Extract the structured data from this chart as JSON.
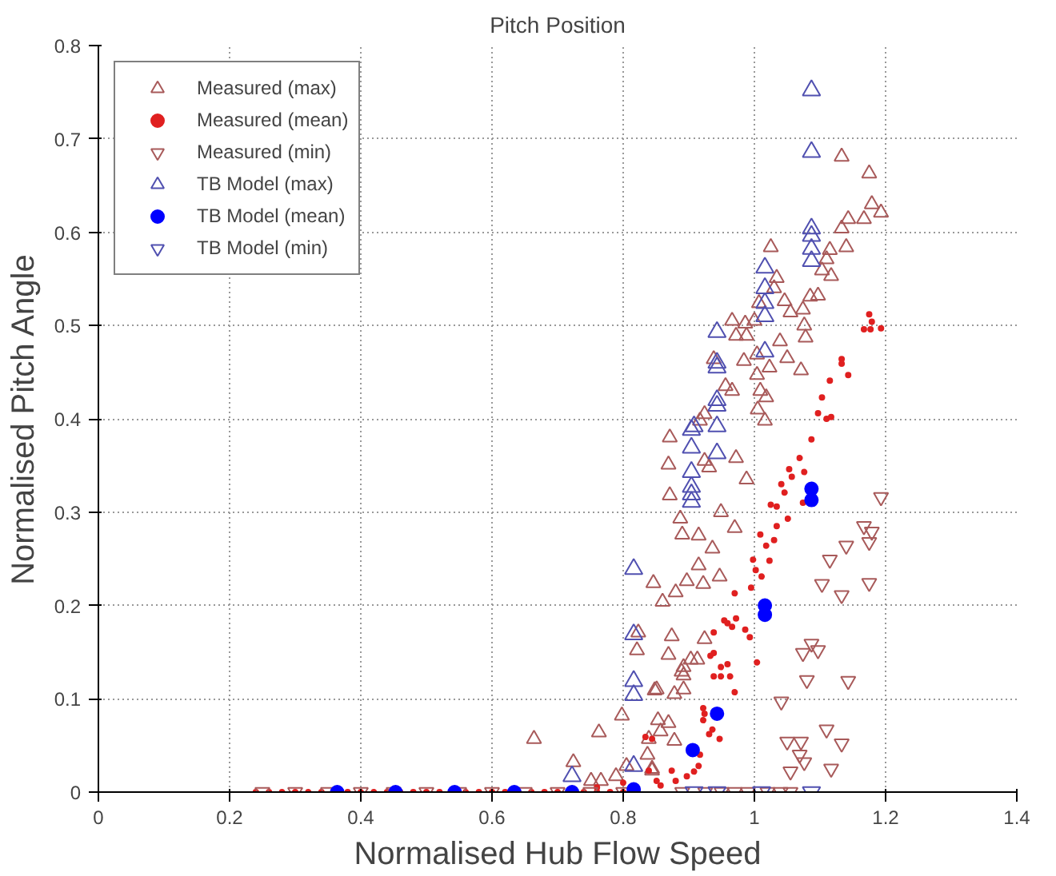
{
  "chart_data": {
    "type": "scatter",
    "title": "Pitch Position",
    "xlabel": "Normalised Hub Flow Speed",
    "ylabel": "Normalised Pitch Angle",
    "xlim": [
      0,
      1.4
    ],
    "ylim": [
      0,
      0.8
    ],
    "xticks": [
      0,
      0.2,
      0.4,
      0.6,
      0.8,
      1,
      1.2,
      1.4
    ],
    "yticks": [
      0,
      0.1,
      0.2,
      0.3,
      0.4,
      0.5,
      0.6,
      0.7,
      0.8
    ],
    "grid": true,
    "legend": "top left",
    "series": [
      {
        "name": "Measured (max)",
        "color": "#a85a5a",
        "marker": "triangle",
        "x": [
          1.133,
          1.175,
          1.179,
          1.193,
          1.167,
          1.143,
          1.133,
          1.14,
          1.115,
          1.11,
          1.103,
          1.117,
          1.025,
          1.034,
          1.03,
          1.046,
          1.085,
          1.097,
          1.074,
          1.055,
          1.076,
          1.078,
          1.039,
          1.05,
          1.071,
          1.007,
          0.966,
          0.986,
          1.0,
          0.972,
          0.988,
          0.984,
          1.004,
          1.023,
          1.004,
          1.009,
          1.018,
          1.005,
          1.016,
          0.938,
          0.956,
          0.966,
          0.924,
          0.917,
          0.871,
          0.869,
          0.924,
          0.931,
          0.972,
          0.988,
          0.871,
          0.949,
          0.97,
          0.887,
          0.89,
          0.915,
          0.936,
          0.915,
          0.947,
          0.846,
          0.88,
          0.897,
          0.922,
          0.86,
          0.823,
          0.874,
          0.821,
          0.924,
          0.892,
          0.892,
          0.913,
          0.851,
          0.878,
          0.892,
          0.798,
          0.853,
          0.869,
          0.857,
          0.839,
          0.878,
          0.837,
          0.844,
          0.664,
          0.763,
          0.724,
          0.889,
          0.848,
          0.869,
          0.903,
          0.766,
          0.789,
          0.751,
          0.805,
          0.844
        ],
        "values": [
          0.681,
          0.663,
          0.63,
          0.621,
          0.614,
          0.614,
          0.604,
          0.584,
          0.581,
          0.571,
          0.559,
          0.553,
          0.584,
          0.551,
          0.54,
          0.526,
          0.531,
          0.532,
          0.517,
          0.514,
          0.5,
          0.487,
          0.483,
          0.465,
          0.452,
          0.524,
          0.505,
          0.502,
          0.505,
          0.489,
          0.489,
          0.462,
          0.469,
          0.455,
          0.447,
          0.43,
          0.423,
          0.41,
          0.398,
          0.464,
          0.435,
          0.43,
          0.405,
          0.398,
          0.38,
          0.351,
          0.355,
          0.348,
          0.358,
          0.335,
          0.318,
          0.3,
          0.283,
          0.293,
          0.276,
          0.275,
          0.261,
          0.243,
          0.231,
          0.224,
          0.214,
          0.226,
          0.223,
          0.204,
          0.171,
          0.167,
          0.152,
          0.164,
          0.134,
          0.125,
          0.142,
          0.11,
          0.105,
          0.11,
          0.082,
          0.077,
          0.074,
          0.065,
          0.057,
          0.055,
          0.04,
          0.025,
          0.057,
          0.064,
          0.032,
          0.129,
          0.109,
          0.147,
          0.142,
          0.012,
          0.017,
          0.012,
          0.028,
          0.023
        ]
      },
      {
        "name": "Measured (mean)",
        "color": "#e02020",
        "marker": "circle",
        "x": [
          1.175,
          1.179,
          1.167,
          1.177,
          1.193,
          1.133,
          1.133,
          1.143,
          1.115,
          1.103,
          1.097,
          1.11,
          1.117,
          1.087,
          1.069,
          1.076,
          1.053,
          1.057,
          1.041,
          1.046,
          1.074,
          1.025,
          1.034,
          1.051,
          1.034,
          1.009,
          1.03,
          1.018,
          0.998,
          1.023,
          1.002,
          1.011,
          0.97,
          0.995,
          0.972,
          0.959,
          0.966,
          0.954,
          0.986,
          0.993,
          0.938,
          1.004,
          0.938,
          0.933,
          0.949,
          0.959,
          0.938,
          0.949,
          0.963,
          0.97,
          0.922,
          0.924,
          0.922,
          0.936,
          0.947,
          0.931,
          0.917,
          0.915,
          0.908,
          0.897,
          0.874,
          0.88,
          0.851,
          0.857,
          0.839,
          0.844,
          0.834,
          0.24,
          0.26,
          0.28,
          0.3,
          0.32,
          0.34,
          0.38,
          0.4,
          0.42,
          0.44,
          0.46,
          0.48,
          0.5,
          0.52,
          0.56,
          0.58,
          0.6,
          0.62,
          0.64,
          0.66,
          0.68,
          0.7,
          0.74,
          0.76,
          0.78,
          0.8,
          0.76,
          0.8
        ],
        "values": [
          0.512,
          0.504,
          0.496,
          0.496,
          0.497,
          0.464,
          0.459,
          0.447,
          0.441,
          0.423,
          0.406,
          0.4,
          0.402,
          0.378,
          0.358,
          0.343,
          0.346,
          0.338,
          0.33,
          0.321,
          0.31,
          0.308,
          0.306,
          0.293,
          0.285,
          0.276,
          0.27,
          0.264,
          0.249,
          0.248,
          0.238,
          0.231,
          0.213,
          0.219,
          0.186,
          0.181,
          0.177,
          0.184,
          0.174,
          0.166,
          0.171,
          0.139,
          0.149,
          0.146,
          0.134,
          0.137,
          0.124,
          0.124,
          0.124,
          0.107,
          0.09,
          0.084,
          0.077,
          0.067,
          0.057,
          0.062,
          0.04,
          0.028,
          0.022,
          0.017,
          0.023,
          0.012,
          0.012,
          0.007,
          0.023,
          0.057,
          0.059,
          0,
          0,
          0,
          0,
          0,
          0,
          0,
          0,
          0,
          0,
          0,
          0,
          0,
          0,
          0,
          0,
          0,
          0,
          0,
          0,
          0,
          0,
          0,
          0,
          0,
          0,
          0.005,
          0.01
        ]
      },
      {
        "name": "Measured (min)",
        "color": "#a85a5a",
        "x": [
          1.193,
          1.167,
          1.179,
          1.175,
          1.14,
          1.115,
          1.103,
          1.133,
          1.175,
          1.087,
          1.097,
          1.074,
          1.08,
          1.143,
          1.041,
          1.11,
          1.05,
          1.071,
          1.133,
          1.069,
          1.076,
          1.117,
          1.055,
          0.97,
          0.99,
          1.02,
          1.04,
          1.055,
          0.95,
          0.925,
          0.89,
          0.25,
          0.3,
          0.35,
          0.4,
          0.45,
          0.5,
          0.55,
          0.6,
          0.65,
          0.7,
          0.75,
          0.8
        ],
        "values": [
          0.316,
          0.285,
          0.279,
          0.268,
          0.264,
          0.249,
          0.223,
          0.211,
          0.224,
          0.159,
          0.152,
          0.149,
          0.12,
          0.119,
          0.097,
          0.067,
          0.054,
          0.054,
          0.052,
          0.04,
          0.032,
          0.025,
          0.022,
          0,
          0,
          0,
          0,
          0,
          0,
          0,
          0,
          0,
          0,
          0,
          0,
          0,
          0,
          0,
          0,
          0,
          0,
          0,
          0
        ]
      },
      {
        "name": "TB Model (max)",
        "color": "#5050b0",
        "marker": "triangle",
        "x": [
          1.087,
          1.087,
          1.087,
          1.087,
          1.087,
          1.087,
          1.016,
          1.016,
          1.016,
          1.016,
          1.016,
          0.943,
          0.943,
          0.943,
          0.943,
          0.943,
          0.943,
          0.908,
          0.904,
          0.904,
          0.904,
          0.904,
          0.904,
          0.904,
          0.943,
          0.816,
          0.816,
          0.816,
          0.816,
          0.816,
          0.722
        ],
        "values": [
          0.752,
          0.686,
          0.604,
          0.596,
          0.582,
          0.569,
          0.562,
          0.54,
          0.524,
          0.51,
          0.472,
          0.493,
          0.46,
          0.455,
          0.42,
          0.414,
          0.392,
          0.392,
          0.388,
          0.369,
          0.343,
          0.327,
          0.319,
          0.311,
          0.363,
          0.239,
          0.169,
          0.119,
          0.104,
          0.028,
          0.017
        ]
      },
      {
        "name": "TB Model (mean)",
        "color": "#0000ff",
        "marker": "circle",
        "x": [
          0.364,
          0.453,
          0.543,
          0.634,
          0.722,
          0.816,
          0.906,
          0.943,
          1.016,
          1.016,
          1.087,
          1.087
        ],
        "values": [
          0,
          0,
          0,
          0,
          0,
          0.003,
          0.045,
          0.084,
          0.2,
          0.19,
          0.325,
          0.313
        ]
      },
      {
        "name": "TB Model (min)",
        "color": "#5050b0",
        "x": [
          0.908,
          0.943,
          1.011,
          1.087
        ],
        "values": [
          0,
          0,
          0,
          0
        ]
      }
    ]
  }
}
